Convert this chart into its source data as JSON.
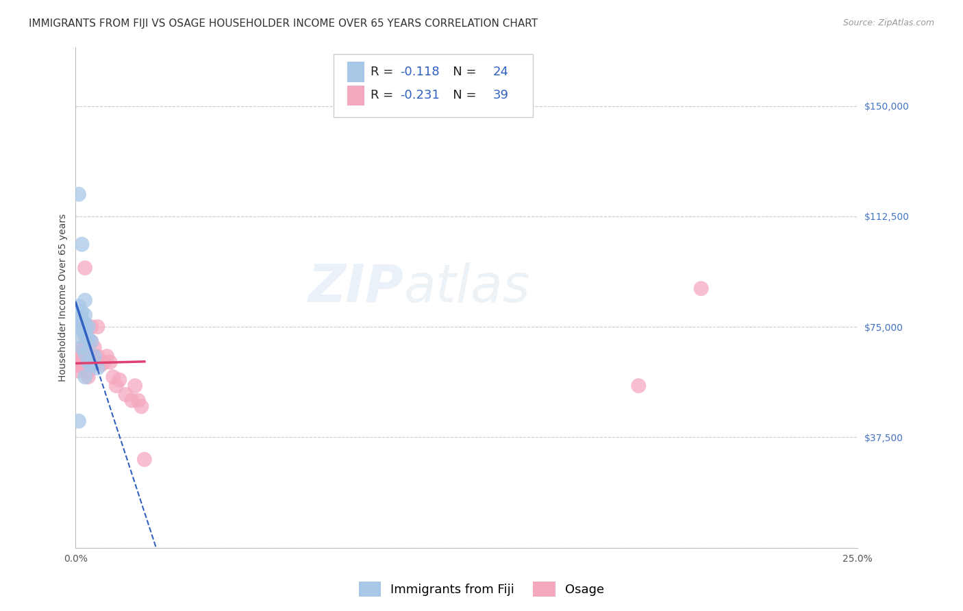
{
  "title": "IMMIGRANTS FROM FIJI VS OSAGE HOUSEHOLDER INCOME OVER 65 YEARS CORRELATION CHART",
  "source": "Source: ZipAtlas.com",
  "ylabel": "Householder Income Over 65 years",
  "xlim": [
    0.0,
    0.25
  ],
  "ylim": [
    0,
    170000
  ],
  "yticks": [
    0,
    37500,
    75000,
    112500,
    150000
  ],
  "xticks": [
    0.0,
    0.05,
    0.1,
    0.15,
    0.2,
    0.25
  ],
  "xtick_labels": [
    "0.0%",
    "",
    "",
    "",
    "",
    "25.0%"
  ],
  "fiji_color": "#a8c8e8",
  "osage_color": "#f4a8be",
  "fiji_line_color": "#3060c0",
  "osage_line_color": "#e04070",
  "fiji_R": -0.118,
  "fiji_N": 24,
  "osage_R": -0.231,
  "osage_N": 39,
  "fiji_points": [
    [
      0.001,
      120000
    ],
    [
      0.002,
      103000
    ],
    [
      0.003,
      84000
    ],
    [
      0.001,
      82000
    ],
    [
      0.002,
      80000
    ],
    [
      0.003,
      79000
    ],
    [
      0.001,
      78000
    ],
    [
      0.002,
      77000
    ],
    [
      0.003,
      76000
    ],
    [
      0.001,
      75500
    ],
    [
      0.004,
      75000
    ],
    [
      0.002,
      74000
    ],
    [
      0.003,
      73000
    ],
    [
      0.001,
      72000
    ],
    [
      0.004,
      71000
    ],
    [
      0.005,
      70000
    ],
    [
      0.002,
      68000
    ],
    [
      0.003,
      66000
    ],
    [
      0.006,
      65000
    ],
    [
      0.004,
      63000
    ],
    [
      0.005,
      62000
    ],
    [
      0.007,
      61000
    ],
    [
      0.003,
      58000
    ],
    [
      0.001,
      43000
    ]
  ],
  "osage_points": [
    [
      0.001,
      65000
    ],
    [
      0.001,
      63000
    ],
    [
      0.001,
      62000
    ],
    [
      0.001,
      60000
    ],
    [
      0.002,
      68000
    ],
    [
      0.002,
      65000
    ],
    [
      0.002,
      63000
    ],
    [
      0.002,
      62000
    ],
    [
      0.003,
      95000
    ],
    [
      0.003,
      75000
    ],
    [
      0.003,
      72000
    ],
    [
      0.003,
      68000
    ],
    [
      0.004,
      65000
    ],
    [
      0.004,
      63000
    ],
    [
      0.004,
      62000
    ],
    [
      0.004,
      60000
    ],
    [
      0.004,
      58000
    ],
    [
      0.005,
      75000
    ],
    [
      0.005,
      70000
    ],
    [
      0.005,
      65000
    ],
    [
      0.006,
      68000
    ],
    [
      0.006,
      65000
    ],
    [
      0.007,
      75000
    ],
    [
      0.007,
      65000
    ],
    [
      0.008,
      62000
    ],
    [
      0.009,
      63000
    ],
    [
      0.01,
      65000
    ],
    [
      0.011,
      63000
    ],
    [
      0.012,
      58000
    ],
    [
      0.013,
      55000
    ],
    [
      0.014,
      57000
    ],
    [
      0.016,
      52000
    ],
    [
      0.018,
      50000
    ],
    [
      0.019,
      55000
    ],
    [
      0.02,
      50000
    ],
    [
      0.021,
      48000
    ],
    [
      0.022,
      30000
    ],
    [
      0.2,
      88000
    ],
    [
      0.18,
      55000
    ]
  ],
  "title_fontsize": 11,
  "ylabel_fontsize": 10,
  "tick_fontsize": 10,
  "watermark_fontsize": 55,
  "watermark_alpha": 0.12
}
